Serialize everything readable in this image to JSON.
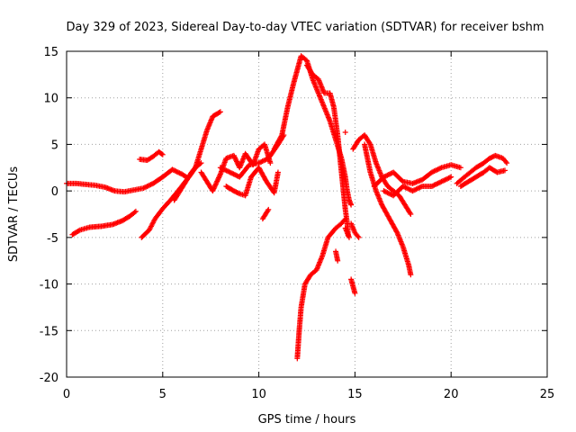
{
  "chart_data": {
    "type": "scatter",
    "title": "Day 329 of 2023, Sidereal Day-to-day VTEC variation (SDTVAR) for receiver bshm",
    "xlabel": "GPS time / hours",
    "ylabel": "SDTVAR / TECUs",
    "xlim": [
      0,
      25
    ],
    "ylim": [
      -20,
      15
    ],
    "xticks": [
      0,
      5,
      10,
      15,
      20,
      25
    ],
    "xtick_labels": [
      "0",
      "5",
      "10",
      "15",
      "20",
      "25"
    ],
    "yticks": [
      -20,
      -15,
      -10,
      -5,
      0,
      5,
      10,
      15
    ],
    "ytick_labels": [
      "-20",
      "-15",
      "-10",
      "-5",
      "0",
      "5",
      "10",
      "15"
    ],
    "grid": true,
    "marker": "+",
    "color": "#ff0000",
    "series": [
      {
        "name": "track-a",
        "points": [
          [
            0.0,
            0.8
          ],
          [
            0.5,
            0.8
          ],
          [
            1.0,
            0.7
          ],
          [
            1.5,
            0.6
          ],
          [
            2.0,
            0.4
          ],
          [
            2.5,
            0.0
          ],
          [
            3.0,
            -0.1
          ],
          [
            3.5,
            0.1
          ],
          [
            4.0,
            0.3
          ],
          [
            4.5,
            0.8
          ],
          [
            5.0,
            1.5
          ],
          [
            5.5,
            2.3
          ],
          [
            6.0,
            1.8
          ],
          [
            6.3,
            1.4
          ]
        ]
      },
      {
        "name": "track-b",
        "points": [
          [
            0.3,
            -4.7
          ],
          [
            0.7,
            -4.2
          ],
          [
            1.2,
            -3.9
          ],
          [
            1.8,
            -3.8
          ],
          [
            2.4,
            -3.6
          ],
          [
            2.9,
            -3.2
          ],
          [
            3.3,
            -2.7
          ],
          [
            3.6,
            -2.2
          ]
        ]
      },
      {
        "name": "track-c",
        "points": [
          [
            3.8,
            3.4
          ],
          [
            4.2,
            3.3
          ],
          [
            4.5,
            3.7
          ],
          [
            4.8,
            4.2
          ],
          [
            5.0,
            3.9
          ]
        ]
      },
      {
        "name": "track-d",
        "points": [
          [
            3.9,
            -5.0
          ],
          [
            4.3,
            -4.2
          ],
          [
            4.6,
            -3.0
          ],
          [
            5.0,
            -1.9
          ],
          [
            5.4,
            -1.0
          ],
          [
            5.8,
            0.0
          ],
          [
            6.1,
            0.8
          ],
          [
            6.4,
            1.6
          ],
          [
            6.7,
            2.5
          ],
          [
            7.0,
            3.0
          ]
        ]
      },
      {
        "name": "track-e",
        "points": [
          [
            5.6,
            -1.0
          ],
          [
            5.9,
            0.0
          ],
          [
            6.2,
            1.0
          ],
          [
            6.5,
            2.0
          ],
          [
            6.9,
            3.0
          ]
        ]
      },
      {
        "name": "track-f",
        "points": [
          [
            6.7,
            2.5
          ],
          [
            7.0,
            4.5
          ],
          [
            7.3,
            6.5
          ],
          [
            7.6,
            8.0
          ],
          [
            8.0,
            8.5
          ]
        ]
      },
      {
        "name": "track-g",
        "points": [
          [
            7.0,
            2.0
          ],
          [
            7.3,
            1.0
          ],
          [
            7.6,
            0.0
          ],
          [
            8.0,
            1.8
          ],
          [
            8.3,
            3.5
          ],
          [
            8.7,
            3.8
          ],
          [
            9.0,
            2.5
          ],
          [
            9.3,
            4.0
          ],
          [
            9.7,
            2.8
          ],
          [
            10.0,
            4.5
          ],
          [
            10.3,
            5.0
          ],
          [
            10.6,
            3.0
          ]
        ]
      },
      {
        "name": "track-h",
        "points": [
          [
            8.3,
            0.5
          ],
          [
            8.7,
            0.0
          ],
          [
            9.0,
            -0.3
          ],
          [
            9.3,
            -0.5
          ],
          [
            9.6,
            1.5
          ],
          [
            10.0,
            2.5
          ],
          [
            10.4,
            1.0
          ],
          [
            10.8,
            -0.2
          ],
          [
            11.0,
            2.0
          ]
        ]
      },
      {
        "name": "track-i",
        "points": [
          [
            8.0,
            2.5
          ],
          [
            8.5,
            2.0
          ],
          [
            9.0,
            1.5
          ],
          [
            9.5,
            2.8
          ],
          [
            10.0,
            3.0
          ],
          [
            10.5,
            3.5
          ],
          [
            11.0,
            5.0
          ],
          [
            11.3,
            6.0
          ]
        ]
      },
      {
        "name": "track-j",
        "points": [
          [
            10.2,
            -3.0
          ],
          [
            10.5,
            -2.0
          ]
        ]
      },
      {
        "name": "track-k",
        "points": [
          [
            10.8,
            4.5
          ],
          [
            11.2,
            6.0
          ],
          [
            11.5,
            9.0
          ],
          [
            11.8,
            11.5
          ],
          [
            12.0,
            13.0
          ],
          [
            12.2,
            14.5
          ],
          [
            12.5,
            14.0
          ],
          [
            12.8,
            12.0
          ],
          [
            13.1,
            10.5
          ],
          [
            13.4,
            9.0
          ],
          [
            13.7,
            7.5
          ],
          [
            14.0,
            5.5
          ],
          [
            14.3,
            3.5
          ],
          [
            14.5,
            1.5
          ],
          [
            14.6,
            0.0
          ],
          [
            14.7,
            -1.0
          ],
          [
            14.8,
            -1.5
          ]
        ]
      },
      {
        "name": "track-l",
        "points": [
          [
            12.0,
            -18.0
          ],
          [
            12.1,
            -15.0
          ],
          [
            12.2,
            -12.5
          ],
          [
            12.4,
            -10.0
          ],
          [
            12.7,
            -9.0
          ],
          [
            13.0,
            -8.5
          ],
          [
            13.3,
            -7.0
          ],
          [
            13.6,
            -5.0
          ],
          [
            14.0,
            -4.0
          ],
          [
            14.3,
            -3.5
          ],
          [
            14.5,
            -3.0
          ]
        ]
      },
      {
        "name": "track-m",
        "points": [
          [
            12.5,
            13.5
          ],
          [
            12.8,
            12.5
          ],
          [
            13.1,
            12.0
          ],
          [
            13.4,
            10.5
          ],
          [
            13.7,
            10.5
          ],
          [
            13.9,
            9.0
          ],
          [
            14.0,
            7.5
          ],
          [
            14.1,
            6.0
          ],
          [
            14.2,
            4.0
          ],
          [
            14.3,
            2.0
          ],
          [
            14.4,
            0.0
          ],
          [
            14.5,
            -2.0
          ],
          [
            14.6,
            -3.5
          ],
          [
            14.65,
            -4.8
          ]
        ]
      },
      {
        "name": "track-n",
        "points": [
          [
            14.0,
            -6.5
          ],
          [
            14.1,
            -7.5
          ]
        ]
      },
      {
        "name": "track-o",
        "points": [
          [
            14.5,
            -4.0
          ],
          [
            14.7,
            -5.0
          ]
        ]
      },
      {
        "name": "track-p",
        "points": [
          [
            14.8,
            -9.5
          ],
          [
            15.0,
            -11.0
          ]
        ]
      },
      {
        "name": "track-q",
        "points": [
          [
            14.8,
            -3.5
          ],
          [
            15.0,
            -4.5
          ],
          [
            15.2,
            -5.0
          ]
        ]
      },
      {
        "name": "track-r",
        "points": [
          [
            14.5,
            6.3
          ]
        ]
      },
      {
        "name": "track-s",
        "points": [
          [
            14.9,
            4.5
          ],
          [
            15.2,
            5.5
          ],
          [
            15.5,
            6.0
          ],
          [
            15.8,
            5.0
          ],
          [
            16.1,
            3.0
          ],
          [
            16.4,
            1.5
          ],
          [
            16.7,
            0.5
          ],
          [
            17.0,
            0.0
          ],
          [
            17.3,
            -0.5
          ],
          [
            17.6,
            -1.5
          ],
          [
            17.9,
            -2.5
          ]
        ]
      },
      {
        "name": "track-t",
        "points": [
          [
            15.5,
            5.0
          ],
          [
            15.8,
            2.0
          ],
          [
            16.1,
            0.0
          ],
          [
            16.4,
            -1.5
          ],
          [
            16.8,
            -3.0
          ],
          [
            17.2,
            -4.5
          ],
          [
            17.5,
            -6.0
          ],
          [
            17.8,
            -8.0
          ],
          [
            17.9,
            -9.0
          ]
        ]
      },
      {
        "name": "track-u",
        "points": [
          [
            16.0,
            0.5
          ],
          [
            16.5,
            1.5
          ],
          [
            17.0,
            2.0
          ],
          [
            17.5,
            1.0
          ],
          [
            18.0,
            0.8
          ],
          [
            18.5,
            1.2
          ],
          [
            19.0,
            2.0
          ],
          [
            19.5,
            2.5
          ],
          [
            20.0,
            2.8
          ],
          [
            20.5,
            2.5
          ]
        ]
      },
      {
        "name": "track-v",
        "points": [
          [
            16.5,
            0.0
          ],
          [
            17.0,
            -0.5
          ],
          [
            17.5,
            0.5
          ],
          [
            18.0,
            0.0
          ],
          [
            18.5,
            0.5
          ],
          [
            19.0,
            0.5
          ],
          [
            19.5,
            1.0
          ],
          [
            20.0,
            1.5
          ]
        ]
      },
      {
        "name": "track-w",
        "points": [
          [
            20.3,
            0.8
          ],
          [
            20.7,
            1.5
          ],
          [
            21.0,
            2.0
          ],
          [
            21.3,
            2.5
          ],
          [
            21.7,
            3.0
          ],
          [
            22.0,
            3.5
          ],
          [
            22.3,
            3.8
          ],
          [
            22.7,
            3.5
          ],
          [
            22.9,
            3.0
          ]
        ]
      },
      {
        "name": "track-x",
        "points": [
          [
            20.5,
            0.5
          ],
          [
            20.9,
            1.0
          ],
          [
            21.3,
            1.5
          ],
          [
            21.7,
            2.0
          ],
          [
            22.0,
            2.5
          ],
          [
            22.4,
            2.0
          ],
          [
            22.8,
            2.2
          ]
        ]
      }
    ]
  }
}
